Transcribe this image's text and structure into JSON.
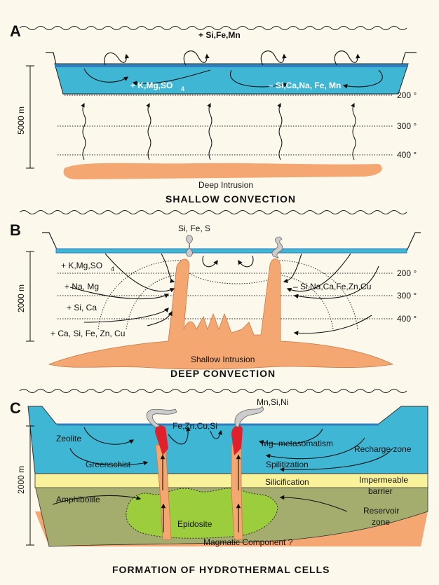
{
  "panel_a": {
    "letter": "A",
    "chem_top": "+ Si,Fe,Mn",
    "chem_left": "+ K,Mg,SO",
    "chem_left_sub": "4",
    "chem_right": "– Si,Ca,Na, Fe, Mn",
    "depth": "5000 m",
    "temps": [
      "200 °",
      "300 °",
      "400 °"
    ],
    "intrusion": "Deep Intrusion",
    "caption": "SHALLOW   CONVECTION"
  },
  "panel_b": {
    "letter": "B",
    "vent_label": "Si, Fe, S",
    "depth": "2000 m",
    "left_labels": [
      "+ K,Mg,SO",
      "+ Na, Mg",
      "+ Si, Ca",
      "+ Ca, Si, Fe, Zn, Cu"
    ],
    "left_sub": "4",
    "right_label": "– Si,Na,Ca,Fe,Zn,Cu",
    "temps": [
      "200 °",
      "300 °",
      "400 °"
    ],
    "intrusion": "Shallow Intrusion",
    "caption": "DEEP   CONVECTION"
  },
  "panel_c": {
    "letter": "C",
    "vent_left": "Fe,Zn,Cu,Si",
    "vent_right": "Mn,Si,Ni",
    "depth": "2000 m",
    "zones": {
      "zeolite": "Zeolite",
      "greenschist": "Greenschist",
      "amphibolite": "Amphibolite",
      "epidosite": "Epidosite",
      "magmatic": "Magmatic Component ?",
      "mg_meta": "Mg- metasomatism",
      "spilitization": "Spilitization",
      "silicification": "Silicification",
      "recharge": "Recharge zone",
      "impermeable_1": "Impermeable",
      "impermeable_2": "barrier",
      "reservoir_1": "Reservoir",
      "reservoir_2": "zone"
    },
    "caption": "FORMATION  OF  HYDROTHERMAL  CELLS"
  },
  "colors": {
    "background": "#fdf8ec",
    "sea": "#3fb6d3",
    "sea_surface": "#2f7fc0",
    "intrusion": "#f4a770",
    "silicification": "#faf29a",
    "amphibolite": "#a4ad6e",
    "epidosite": "#9ccd3c",
    "vent": "#e0202a"
  }
}
